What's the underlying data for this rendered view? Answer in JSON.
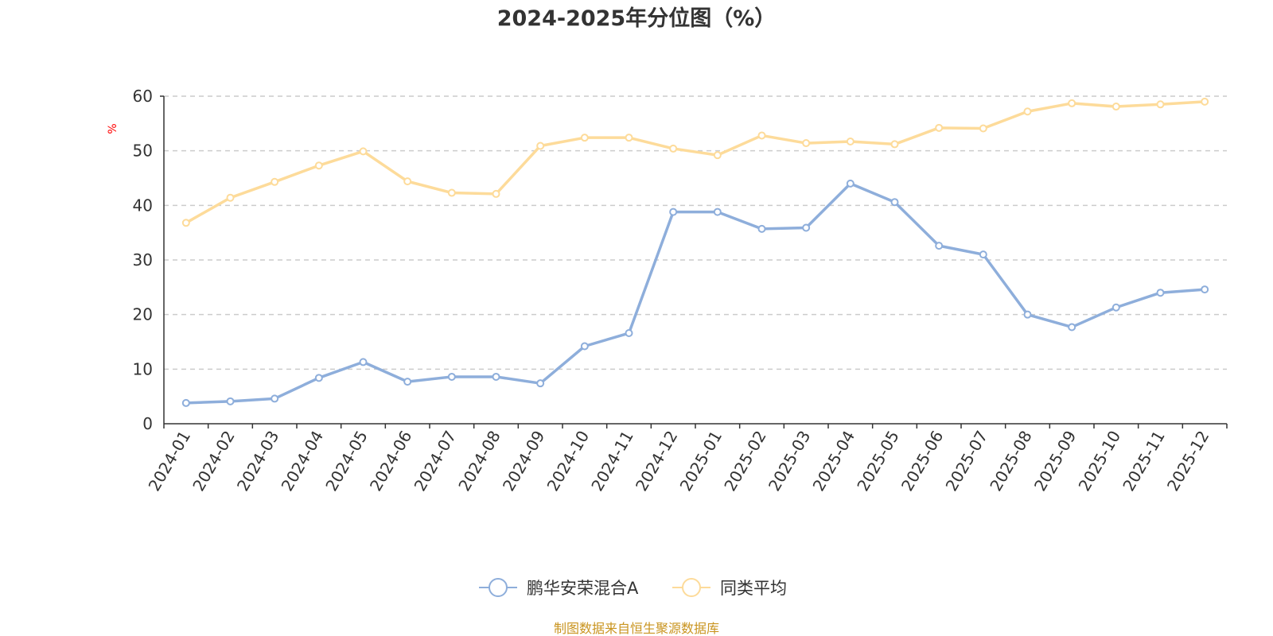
{
  "chart_data": {
    "type": "line",
    "title": "2024-2025年分位图（%）",
    "xlabel": "",
    "ylabel": "%",
    "ylim": [
      0,
      60
    ],
    "yticks": [
      0,
      10,
      20,
      30,
      40,
      50,
      60
    ],
    "grid": true,
    "legend_position": "bottom-center",
    "categories": [
      "2024-01",
      "2024-02",
      "2024-03",
      "2024-04",
      "2024-05",
      "2024-06",
      "2024-07",
      "2024-08",
      "2024-09",
      "2024-10",
      "2024-11",
      "2024-12",
      "2025-01",
      "2025-02",
      "2025-03",
      "2025-04",
      "2025-05",
      "2025-06",
      "2025-07",
      "2025-08",
      "2025-09",
      "2025-10",
      "2025-11",
      "2025-12"
    ],
    "series": [
      {
        "name": "鹏华安荣混合A",
        "color": "#8eaedb",
        "values": [
          3.8,
          4.1,
          4.6,
          8.4,
          11.3,
          7.7,
          8.6,
          8.6,
          7.4,
          14.2,
          16.6,
          38.8,
          38.8,
          35.7,
          35.9,
          44.0,
          40.6,
          32.6,
          31.0,
          20.0,
          17.7,
          21.3,
          24.0,
          24.6
        ]
      },
      {
        "name": "同类平均",
        "color": "#fddb9a",
        "values": [
          36.8,
          41.4,
          44.3,
          47.3,
          49.9,
          44.4,
          42.3,
          42.1,
          50.9,
          52.4,
          52.4,
          50.4,
          49.2,
          52.8,
          51.4,
          51.7,
          51.2,
          54.2,
          54.1,
          57.2,
          58.7,
          58.1,
          58.5,
          59.0
        ]
      }
    ],
    "source_text": "制图数据来自恒生聚源数据库",
    "source_color": "#c9941f",
    "ylabel_color": "#ff0000"
  }
}
